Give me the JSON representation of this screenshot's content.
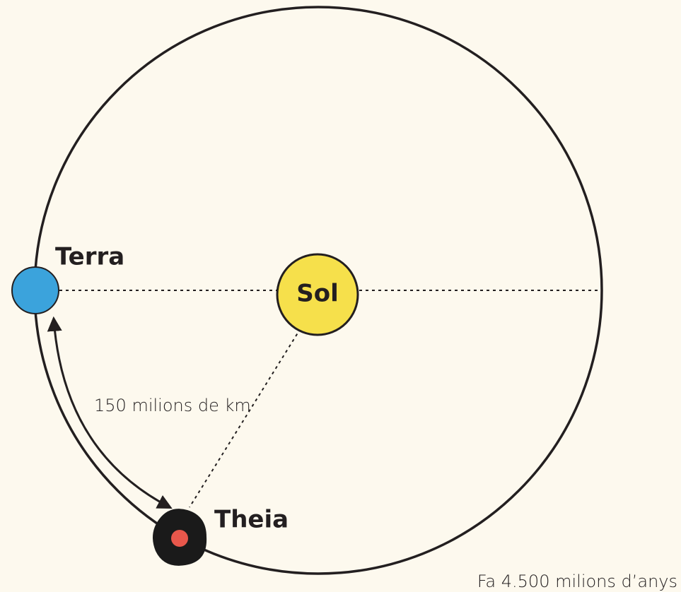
{
  "nodes": [
    {
      "label": "Sol"
    },
    {
      "label": "Terra"
    },
    {
      "label": "Theia"
    }
  ],
  "edges": [
    {
      "label": "150 milions de km"
    }
  ],
  "caption": "Fa 4.500 milions d’anys"
}
